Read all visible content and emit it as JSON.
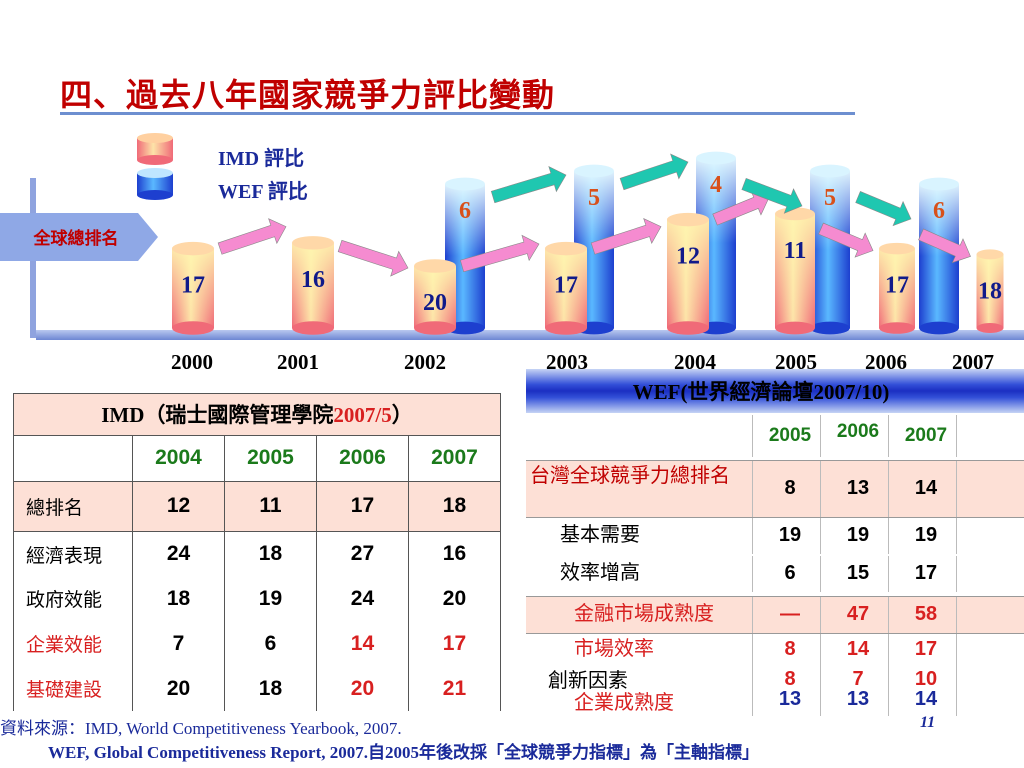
{
  "slide": {
    "title": "四、過去八年國家競爭力評比變動",
    "page_number": "11"
  },
  "chart_data": {
    "type": "bar",
    "category_label": "全球總排名",
    "categories": [
      "2000",
      "2001",
      "2002",
      "2003",
      "2004",
      "2005",
      "2006",
      "2007"
    ],
    "series": [
      {
        "name": "IMD 評比",
        "values": [
          17,
          16,
          20,
          17,
          12,
          11,
          17,
          18
        ]
      },
      {
        "name": "WEF 評比",
        "values": [
          null,
          null,
          6,
          5,
          4,
          5,
          6,
          null
        ]
      }
    ],
    "colors": {
      "imd": "#f07a86",
      "imd_top": "#fff4a8",
      "wef": "#2a5bd8",
      "wef_top": "#dff4ff",
      "label": "#d8501a",
      "arrow_pink": "#f58bd0",
      "arrow_teal": "#1fc7b0"
    }
  },
  "imd_table": {
    "title": "IMD（瑞士國際管理學院",
    "title_year": "2007/5",
    "title_end": "）",
    "years": [
      "2004",
      "2005",
      "2006",
      "2007"
    ],
    "total": {
      "label": "總排名",
      "values": [
        "12",
        "11",
        "17",
        "18"
      ]
    },
    "rows": [
      {
        "label": "經濟表現",
        "label_red": false,
        "values": [
          "24",
          "18",
          "27",
          "16"
        ],
        "red": [
          false,
          false,
          false,
          false
        ]
      },
      {
        "label": "政府效能",
        "label_red": false,
        "values": [
          "18",
          "19",
          "24",
          "20"
        ],
        "red": [
          false,
          false,
          false,
          false
        ]
      },
      {
        "label": "企業效能",
        "label_red": true,
        "values": [
          "7",
          "6",
          "14",
          "17"
        ],
        "red": [
          false,
          false,
          true,
          true
        ]
      },
      {
        "label": "基礎建設",
        "label_red": true,
        "values": [
          "20",
          "18",
          "20",
          "21"
        ],
        "red": [
          false,
          false,
          true,
          true
        ]
      }
    ]
  },
  "wef_table": {
    "title": "WEF(世界經濟論壇2007/10)",
    "years": [
      "2005",
      "2006",
      "2007"
    ],
    "total": {
      "label": "台灣全球競爭力總排名",
      "values": [
        "8",
        "13",
        "14"
      ]
    },
    "basic": {
      "label": "基本需要",
      "values": [
        "19",
        "19",
        "19"
      ]
    },
    "efficiency": {
      "label": "效率增高",
      "values": [
        "6",
        "15",
        "17"
      ]
    },
    "finance": {
      "label": "金融市場成熟度",
      "values": [
        "—",
        "47",
        "58"
      ]
    },
    "market": {
      "label": "市場效率",
      "values": [
        "8",
        "14",
        "17"
      ]
    },
    "innovation": {
      "label": "創新因素",
      "values": [
        "8",
        "7",
        "10"
      ]
    },
    "business": {
      "label": "企業成熟度",
      "values": [
        "13",
        "13",
        "14"
      ]
    }
  },
  "source": {
    "line1": "資料來源：IMD, World Competitiveness Yearbook, 2007.",
    "line2": "WEF, Global Competitiveness Report, 2007.自2005年後改採「全球競爭力指標」為「主軸指標」"
  }
}
